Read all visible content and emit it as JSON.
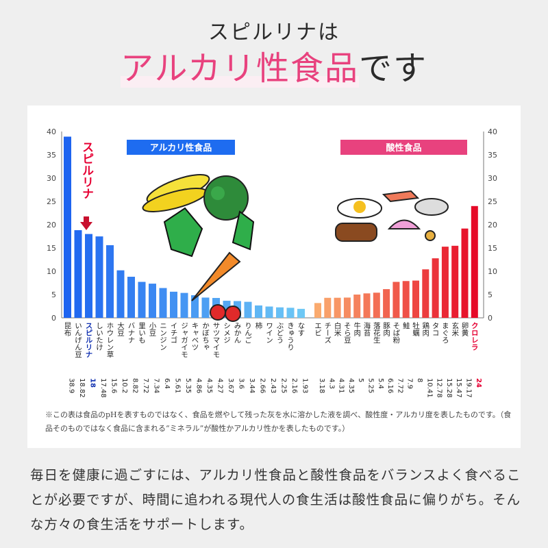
{
  "header": {
    "subtitle": "スピルリナは",
    "highlight": "アルカリ性食品",
    "rest": "です"
  },
  "chart_data": {
    "type": "bar",
    "ylim": [
      0,
      40
    ],
    "yticks": [
      0,
      5,
      10,
      15,
      20,
      25,
      30,
      35,
      40
    ],
    "grid": false,
    "groups": [
      {
        "name": "アルカリ性食品",
        "categories": [
          "昆布",
          "いんげん豆",
          "スピルリナ",
          "しいたけ",
          "ホウレン草",
          "大豆",
          "バナナ",
          "里いも",
          "小豆",
          "ニンジン",
          "イチゴ",
          "ジャガイモ",
          "キャベツ",
          "かぼちゃ",
          "サツマイモ",
          "シメジ",
          "みかん",
          "りんご",
          "柿",
          "ワイン",
          "ぶどう",
          "きゅうり",
          "なす"
        ],
        "values": [
          38.9,
          18.82,
          18,
          17.48,
          15.6,
          10.2,
          8.82,
          7.72,
          7.34,
          6.4,
          5.61,
          5.35,
          4.86,
          4.35,
          4.27,
          3.67,
          3.6,
          3.44,
          2.66,
          2.43,
          2.25,
          2.16,
          1.93
        ],
        "value_labels": [
          "38.9",
          "18.82",
          "18",
          "17.48",
          "15.6",
          "10.2",
          "8.82",
          "7.72",
          "7.34",
          "6.4",
          "5.61",
          "5.35",
          "4.86",
          "4.35",
          "4.27",
          "3.67",
          "3.6",
          "3.44",
          "2.66",
          "2.43",
          "2.25",
          "2.16",
          "1.93"
        ],
        "highlight": "スピルリナ"
      },
      {
        "name": "酸性食品",
        "categories": [
          "エビ",
          "チーズ",
          "白米",
          "そら豆",
          "牛肉",
          "海苔",
          "落花生",
          "豚肉",
          "そば粉",
          "鮭",
          "牡蠣",
          "鶏肉",
          "タコ",
          "まぐろ",
          "玄米",
          "卵黄",
          "クロレラ"
        ],
        "values": [
          3.18,
          4.3,
          4.31,
          4.35,
          5,
          5.25,
          5.4,
          6.16,
          7.72,
          7.9,
          8,
          10.41,
          12.78,
          15.28,
          15.47,
          19.17,
          24
        ],
        "value_labels": [
          "3.18",
          "4.3",
          "4.31",
          "4.35",
          "5",
          "5.25",
          "5.4",
          "6.16",
          "7.72",
          "7.9",
          "8",
          "10.41",
          "12.78",
          "15.28",
          "15.47",
          "19.17",
          "24"
        ],
        "highlight": "クロレラ"
      }
    ],
    "annotation": "スピルリナ"
  },
  "colors": {
    "pink": "#e8427e",
    "blue": "#1e6cf0",
    "red": "#e60033",
    "navy": "#1030b0"
  },
  "note": "※この表は食品のpHを表すものではなく、食品を燃やして残った灰を水に溶かした液を調べ、酸性度・アルカリ度を表したものです。（食品そのものではなく食品に含まれる“ミネラル”が酸性かアルカリ性かを表したものです。）",
  "body": "毎日を健康に過ごすには、アルカリ性食品と酸性食品をバランスよく食べることが必要ですが、時間に追われる現代人の食生活は酸性食品に偏りがち。そんな方々の食生活をサポートします。"
}
